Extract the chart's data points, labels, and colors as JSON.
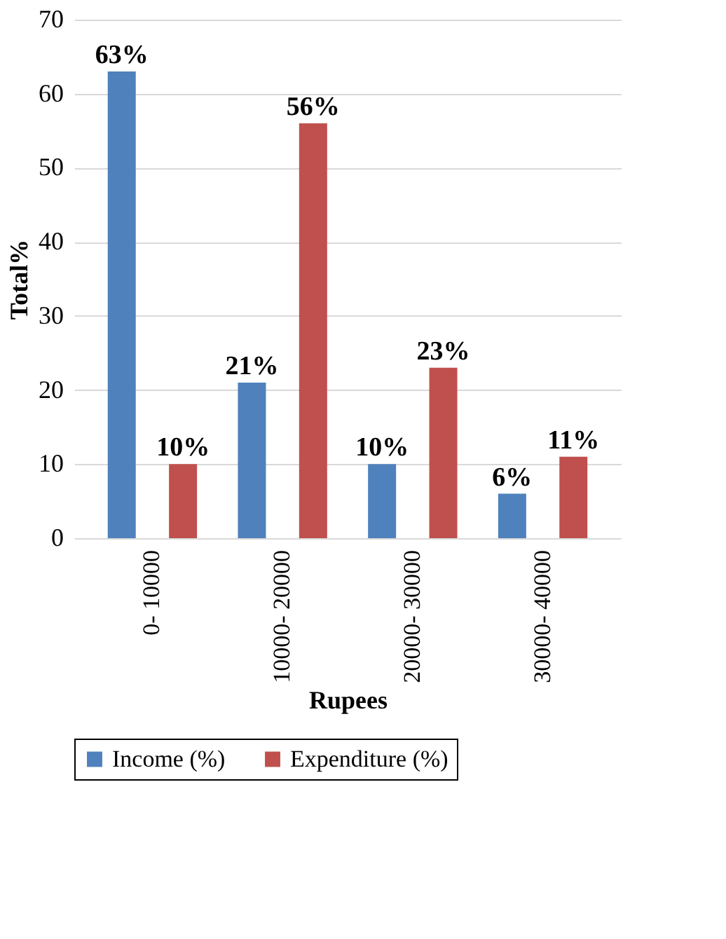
{
  "chart_data": {
    "type": "bar",
    "xlabel": "Rupees",
    "ylabel": "Total%",
    "categories": [
      "0-   10000",
      "10000- 20000",
      "20000- 30000",
      "30000- 40000"
    ],
    "series": [
      {
        "name": "Income (%)",
        "color": "#4f81bd",
        "values": [
          63,
          21,
          10,
          6
        ],
        "value_labels": [
          "63%",
          "21%",
          "10%",
          "6%"
        ]
      },
      {
        "name": "Expenditure (%)",
        "color": "#c0504d",
        "values": [
          10,
          56,
          23,
          11
        ],
        "value_labels": [
          "10%",
          "56%",
          "23%",
          "11%"
        ]
      }
    ],
    "ylim": [
      0,
      70
    ],
    "yticks": [
      0,
      10,
      20,
      30,
      40,
      50,
      60,
      70
    ],
    "grid": "y",
    "legend": "bottom"
  }
}
